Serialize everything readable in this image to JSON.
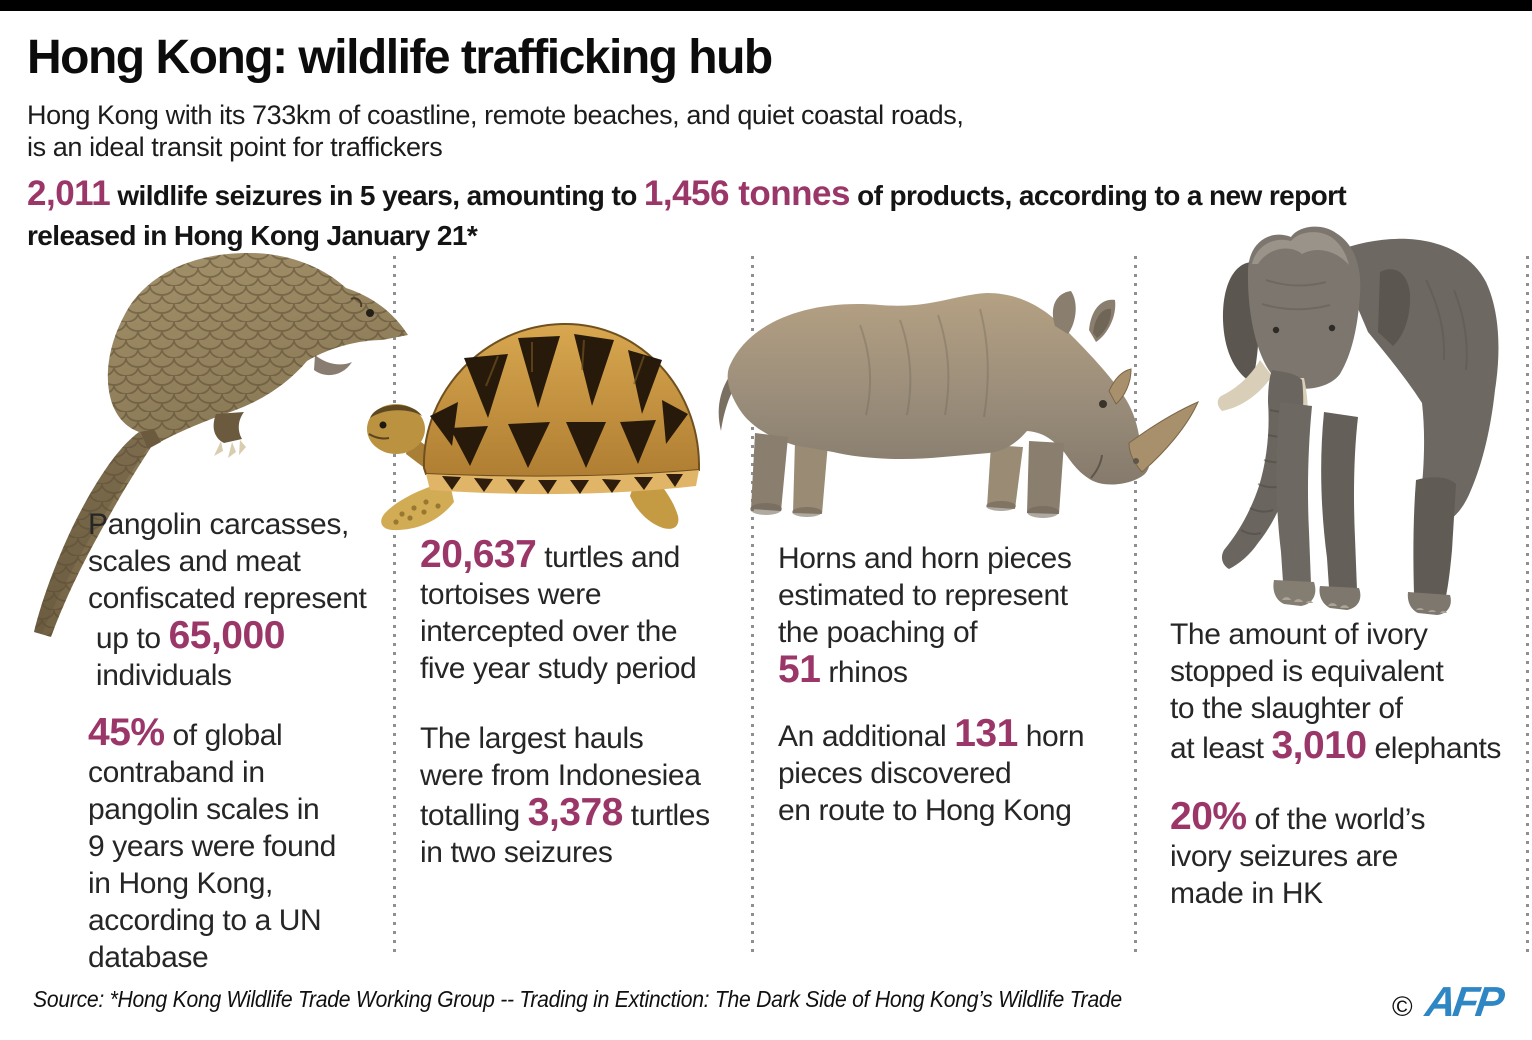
{
  "colors": {
    "accent": "#9b3768",
    "afp_blue": "#2e86c4",
    "top_bar": "#000000",
    "divider_dot": "#8f8f8f",
    "body_text": "#262626"
  },
  "header": {
    "title": "Hong Kong: wildlife trafficking hub",
    "subtitle": "Hong Kong with its 733km of coastline, remote beaches, and quiet coastal roads,\nis an ideal transit point for traffickers",
    "intro": [
      {
        "t": "2,011",
        "s": "big"
      },
      {
        "t": " wildlife seizures in 5 years, amounting to "
      },
      {
        "t": "1,456 tonnes",
        "s": "big"
      },
      {
        "t": " of products, according to a new report\nreleased in Hong Kong January 21*"
      }
    ]
  },
  "columns": [
    {
      "animal": "pangolin",
      "paragraphs": [
        [
          {
            "t": "Pangolin carcasses,\nscales and meat\nconfiscated represent\n up to "
          },
          {
            "t": "65,000",
            "s": "big"
          },
          {
            "t": "\n individuals"
          }
        ],
        [
          {
            "t": "45%",
            "s": "big"
          },
          {
            "t": " of global\ncontraband in\npangolin scales in\n9 years were found\nin Hong Kong,\naccording to a UN\ndatabase"
          }
        ]
      ]
    },
    {
      "animal": "tortoise",
      "paragraphs": [
        [
          {
            "t": "20,637",
            "s": "big"
          },
          {
            "t": " turtles and\ntortoises were\nintercepted over the\nfive year study period"
          }
        ],
        [
          {
            "t": "The largest hauls\nwere from Indonesiea\ntotalling "
          },
          {
            "t": "3,378",
            "s": "big"
          },
          {
            "t": " turtles\nin two seizures"
          }
        ]
      ]
    },
    {
      "animal": "rhino",
      "paragraphs": [
        [
          {
            "t": "Horns and horn pieces\nestimated to represent\nthe poaching of\n"
          },
          {
            "t": "51",
            "s": "big"
          },
          {
            "t": " rhinos"
          }
        ],
        [
          {
            "t": "An additional "
          },
          {
            "t": "131",
            "s": "big"
          },
          {
            "t": " horn\npieces discovered\nen route to Hong Kong"
          }
        ]
      ]
    },
    {
      "animal": "elephant",
      "paragraphs": [
        [
          {
            "t": "The amount of ivory\nstopped is equivalent\nto the slaughter of\nat least "
          },
          {
            "t": "3,010",
            "s": "big"
          },
          {
            "t": " elephants"
          }
        ],
        [
          {
            "t": "20%",
            "s": "big"
          },
          {
            "t": " of the world’s\nivory seizures are\nmade in HK"
          }
        ]
      ]
    }
  ],
  "footer": {
    "source": "Source: *Hong Kong Wildlife Trade Working Group -- Trading in Extinction: The Dark Side of Hong Kong’s Wildlife Trade",
    "copyright": "©",
    "logo": "AFP"
  }
}
